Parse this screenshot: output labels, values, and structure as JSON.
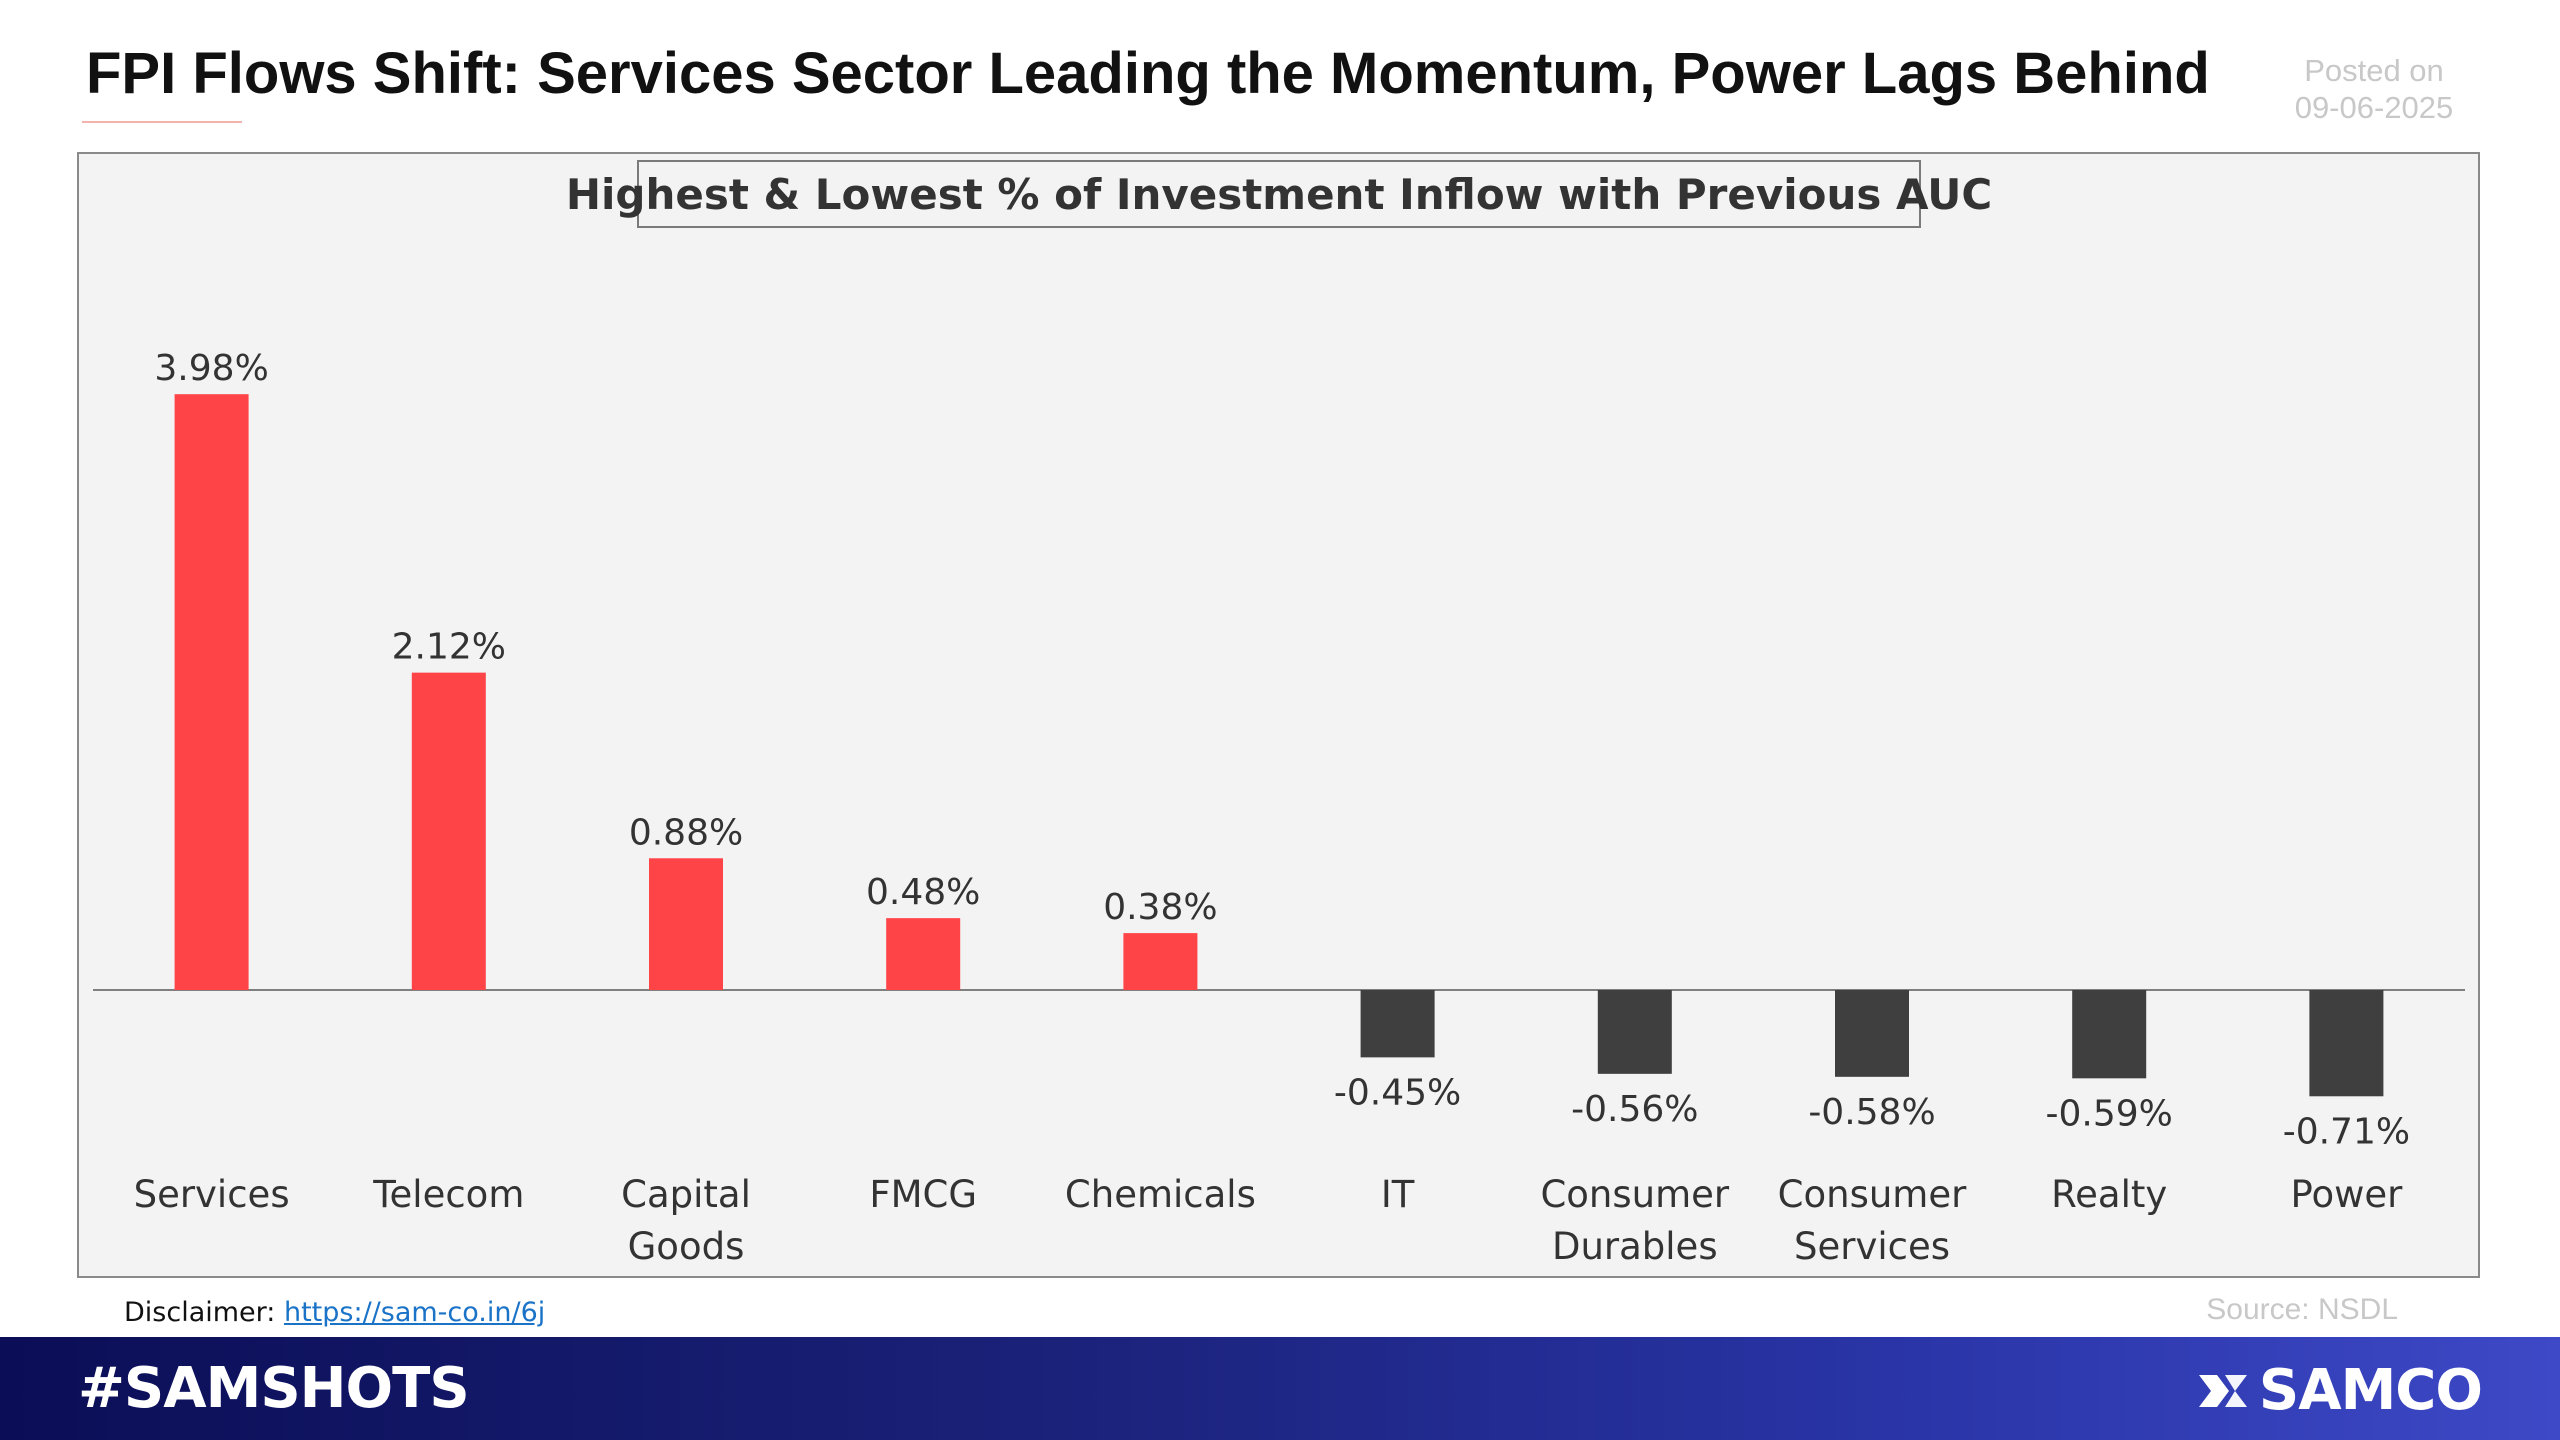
{
  "header": {
    "title": "FPI Flows Shift: Services Sector Leading the Momentum, Power Lags Behind",
    "posted_label": "Posted on",
    "posted_date": "09-06-2025"
  },
  "chart_data": {
    "type": "bar",
    "title": "Highest & Lowest % of Investment Inflow with Previous AUC",
    "categories": [
      [
        "Services"
      ],
      [
        "Telecom"
      ],
      [
        "Capital",
        "Goods"
      ],
      [
        "FMCG"
      ],
      [
        "Chemicals"
      ],
      [
        "IT"
      ],
      [
        "Consumer",
        "Durables"
      ],
      [
        "Consumer",
        "Services"
      ],
      [
        "Realty"
      ],
      [
        "Power"
      ]
    ],
    "values": [
      3.98,
      2.12,
      0.88,
      0.48,
      0.38,
      -0.45,
      -0.56,
      -0.58,
      -0.59,
      -0.71
    ],
    "data_labels": [
      "3.98%",
      "2.12%",
      "0.88%",
      "0.48%",
      "0.38%",
      "-0.45%",
      "-0.56%",
      "-0.58%",
      "-0.59%",
      "-0.71%"
    ],
    "xlabel": "",
    "ylabel": "",
    "ylim": [
      -1.2,
      4.5
    ],
    "grid": false,
    "colors": {
      "positive": "#ff4448",
      "negative": "#3f3f3f",
      "axis": "#7f7f7f",
      "label": "#333333"
    }
  },
  "footer": {
    "disclaimer_label": "Disclaimer:",
    "disclaimer_link": "https://sam-co.in/6j",
    "source": "Source: NSDL",
    "hashtag": "#SAMSHOTS",
    "brand": "SAMCO",
    "brand_icon": "samco-logo-icon"
  }
}
